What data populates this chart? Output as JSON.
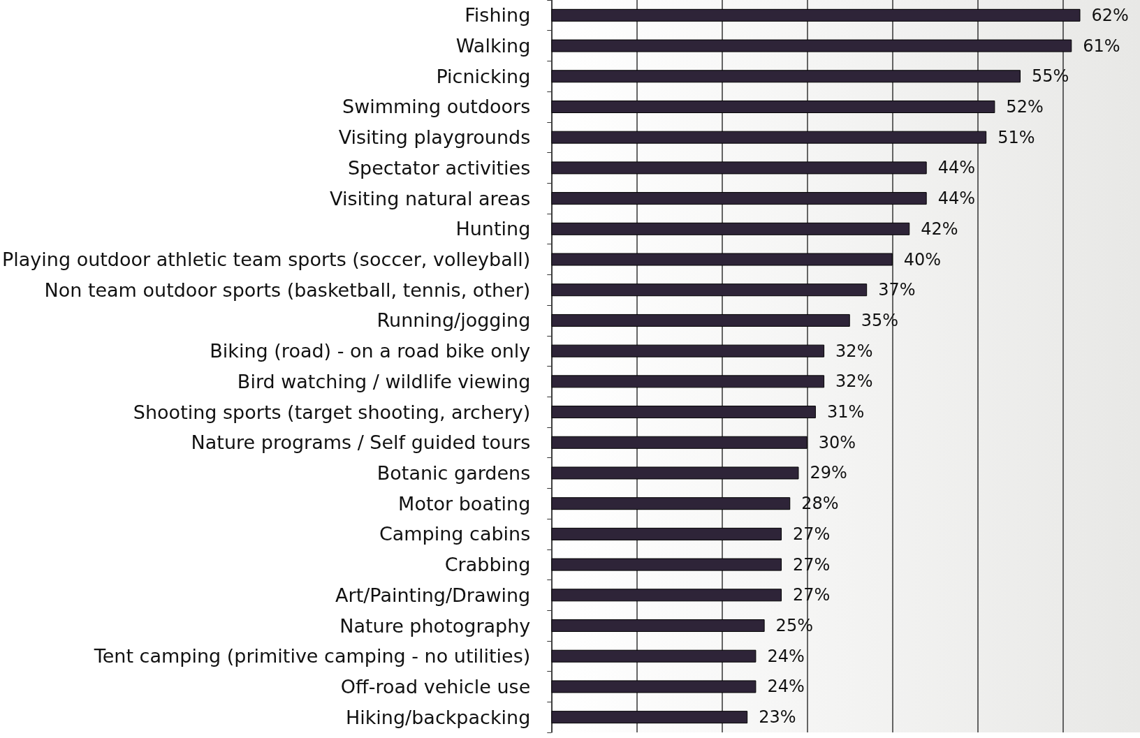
{
  "chart_data": {
    "type": "bar",
    "orientation": "horizontal",
    "categories": [
      "Fishing",
      "Walking",
      "Picnicking",
      "Swimming outdoors",
      "Visiting playgrounds",
      "Spectator activities",
      "Visiting natural areas",
      "Hunting",
      "Playing outdoor athletic team sports (soccer, volleyball)",
      "Non team outdoor sports (basketball, tennis, other)",
      "Running/jogging",
      "Biking (road) - on a road bike only",
      "Bird watching / wildlife viewing",
      "Shooting sports (target shooting, archery)",
      "Nature programs / Self guided tours",
      "Botanic gardens",
      "Motor boating",
      "Camping cabins",
      "Crabbing",
      "Art/Painting/Drawing",
      "Nature photography",
      "Tent camping (primitive camping - no utilities)",
      "Off-road vehicle use",
      "Hiking/backpacking"
    ],
    "values": [
      62,
      61,
      55,
      52,
      51,
      44,
      44,
      42,
      40,
      37,
      35,
      32,
      32,
      31,
      30,
      29,
      28,
      27,
      27,
      27,
      25,
      24,
      24,
      23
    ],
    "value_labels": [
      "62%",
      "61%",
      "55%",
      "52%",
      "51%",
      "44%",
      "44%",
      "42%",
      "40%",
      "37%",
      "35%",
      "32%",
      "32%",
      "31%",
      "30%",
      "29%",
      "28%",
      "27%",
      "27%",
      "27%",
      "25%",
      "24%",
      "24%",
      "23%"
    ],
    "color": "#2e2438",
    "xlim": [
      0,
      69
    ],
    "xticks": [
      {
        "value": 0,
        "label": null
      },
      {
        "value": 10,
        "label": null
      },
      {
        "value": 20,
        "label": null
      },
      {
        "value": 30,
        "label": null
      },
      {
        "value": 40,
        "label": null
      },
      {
        "value": 50,
        "label": null
      },
      {
        "value": 60,
        "label": null
      }
    ],
    "grid": "x"
  }
}
